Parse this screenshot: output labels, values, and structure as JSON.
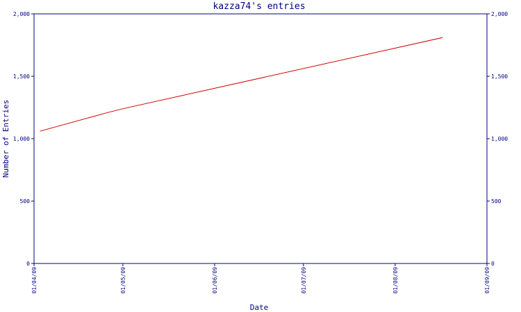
{
  "chart_data": {
    "type": "line",
    "title": "kazza74's entries",
    "xlabel": "Date",
    "ylabel": "Number of Entries",
    "x_ticks": [
      "01/04/09",
      "01/05/09",
      "01/06/09",
      "01/07/09",
      "01/08/09",
      "01/09/09"
    ],
    "y_ticks": [
      "0",
      "500",
      "1,000",
      "1,500",
      "2,000"
    ],
    "ylim": [
      0,
      2000
    ],
    "xlim": [
      "2009-04-01",
      "2009-09-01"
    ],
    "series": [
      {
        "color": "#cc0000",
        "points": [
          {
            "x": "2009-04-03",
            "y": 1060
          },
          {
            "x": "2009-04-26",
            "y": 1210
          },
          {
            "x": "2009-05-01",
            "y": 1240
          },
          {
            "x": "2009-08-17",
            "y": 1810
          }
        ]
      }
    ]
  }
}
